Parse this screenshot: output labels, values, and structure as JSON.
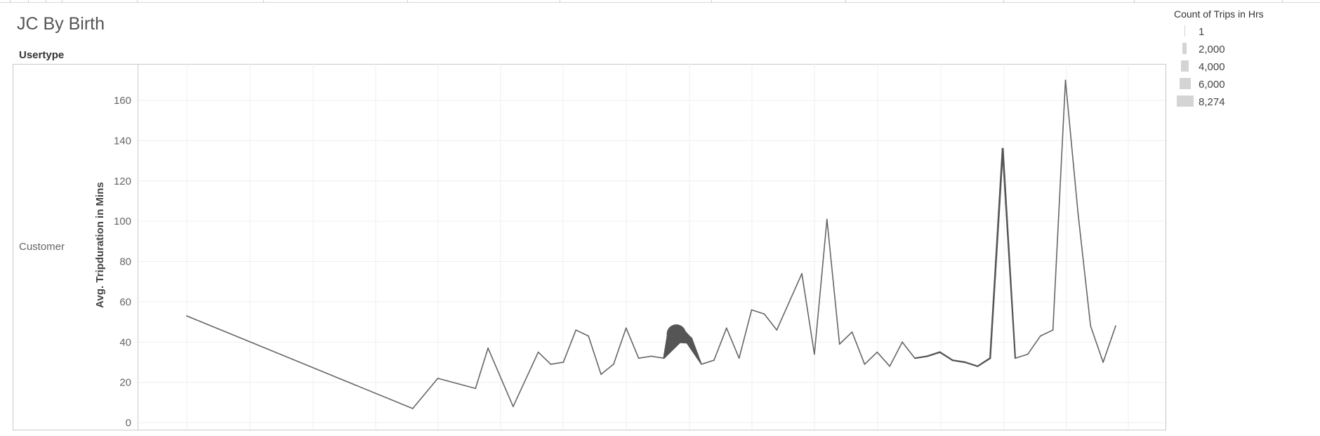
{
  "title": "JC By Birth",
  "row_header": "Usertype",
  "row_label": "Customer",
  "legend": {
    "title": "Count of Trips in Hrs",
    "items": [
      "1",
      "2,000",
      "4,000",
      "6,000",
      "8,274"
    ]
  },
  "colors": {
    "line": "#666666",
    "grid": "#efefef",
    "axis": "#c9c9c9",
    "legend": "#d4d4d4"
  },
  "chart_data": {
    "type": "line",
    "ylabel": "Avg. Tripduration in Mins",
    "ylim": [
      0,
      175
    ],
    "yticks": [
      0,
      20,
      40,
      60,
      80,
      100,
      120,
      140,
      160
    ],
    "grid": true,
    "legend_position": "top-right",
    "points": [
      {
        "x": 0,
        "y": 53,
        "count": 1
      },
      {
        "x": 18,
        "y": 7,
        "count": 1
      },
      {
        "x": 20,
        "y": 22,
        "count": 1
      },
      {
        "x": 23,
        "y": 17,
        "count": 1
      },
      {
        "x": 24,
        "y": 37,
        "count": 1
      },
      {
        "x": 26,
        "y": 8,
        "count": 1
      },
      {
        "x": 28,
        "y": 35,
        "count": 1
      },
      {
        "x": 29,
        "y": 29,
        "count": 1
      },
      {
        "x": 30,
        "y": 30,
        "count": 1
      },
      {
        "x": 31,
        "y": 46,
        "count": 1
      },
      {
        "x": 32,
        "y": 43,
        "count": 1
      },
      {
        "x": 33,
        "y": 24,
        "count": 1
      },
      {
        "x": 34,
        "y": 29,
        "count": 1
      },
      {
        "x": 35,
        "y": 47,
        "count": 1
      },
      {
        "x": 36,
        "y": 32,
        "count": 1
      },
      {
        "x": 37,
        "y": 33,
        "count": 1
      },
      {
        "x": 38,
        "y": 32,
        "count": 200
      },
      {
        "x": 39,
        "y": 44,
        "count": 8274
      },
      {
        "x": 40,
        "y": 41,
        "count": 3000
      },
      {
        "x": 41,
        "y": 29,
        "count": 1
      },
      {
        "x": 42,
        "y": 31,
        "count": 1
      },
      {
        "x": 43,
        "y": 47,
        "count": 1
      },
      {
        "x": 44,
        "y": 32,
        "count": 1
      },
      {
        "x": 45,
        "y": 56,
        "count": 1
      },
      {
        "x": 46,
        "y": 54,
        "count": 1
      },
      {
        "x": 47,
        "y": 46,
        "count": 1
      },
      {
        "x": 49,
        "y": 74,
        "count": 1
      },
      {
        "x": 50,
        "y": 34,
        "count": 1
      },
      {
        "x": 51,
        "y": 101,
        "count": 1
      },
      {
        "x": 52,
        "y": 39,
        "count": 1
      },
      {
        "x": 53,
        "y": 45,
        "count": 1
      },
      {
        "x": 54,
        "y": 29,
        "count": 50
      },
      {
        "x": 55,
        "y": 35,
        "count": 50
      },
      {
        "x": 56,
        "y": 28,
        "count": 50
      },
      {
        "x": 57,
        "y": 40,
        "count": 150
      },
      {
        "x": 58,
        "y": 32,
        "count": 200
      },
      {
        "x": 59,
        "y": 33,
        "count": 250
      },
      {
        "x": 60,
        "y": 35,
        "count": 300
      },
      {
        "x": 61,
        "y": 31,
        "count": 250
      },
      {
        "x": 62,
        "y": 30,
        "count": 250
      },
      {
        "x": 63,
        "y": 28,
        "count": 250
      },
      {
        "x": 64,
        "y": 32,
        "count": 300
      },
      {
        "x": 65,
        "y": 136,
        "count": 400
      },
      {
        "x": 66,
        "y": 32,
        "count": 200
      },
      {
        "x": 67,
        "y": 34,
        "count": 100
      },
      {
        "x": 68,
        "y": 43,
        "count": 50
      },
      {
        "x": 69,
        "y": 46,
        "count": 20
      },
      {
        "x": 70,
        "y": 170,
        "count": 5
      },
      {
        "x": 71,
        "y": 104,
        "count": 1
      },
      {
        "x": 72,
        "y": 48,
        "count": 1
      },
      {
        "x": 73,
        "y": 30,
        "count": 1
      },
      {
        "x": 74,
        "y": 48,
        "count": 1
      }
    ]
  }
}
